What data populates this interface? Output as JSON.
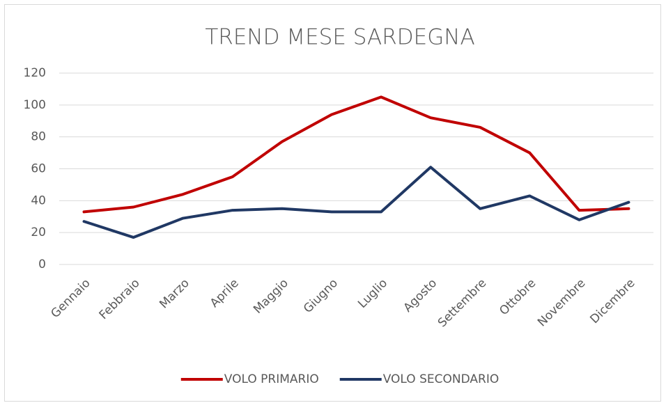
{
  "chart_data": {
    "type": "line",
    "title": "TREND MESE SARDEGNA",
    "categories": [
      "Gennaio",
      "Febbraio",
      "Marzo",
      "Aprile",
      "Maggio",
      "Giugno",
      "Luglio",
      "Agosto",
      "Settembre",
      "Ottobre",
      "Novembre",
      "Dicembre"
    ],
    "series": [
      {
        "name": "VOLO PRIMARIO",
        "color": "#c00000",
        "values": [
          33,
          36,
          44,
          55,
          77,
          94,
          105,
          92,
          86,
          70,
          34,
          35
        ]
      },
      {
        "name": "VOLO SECONDARIO",
        "color": "#203864",
        "values": [
          27,
          17,
          29,
          34,
          35,
          33,
          33,
          61,
          35,
          43,
          28,
          39
        ]
      }
    ],
    "ylim": [
      0,
      120
    ],
    "yticks": [
      0,
      20,
      40,
      60,
      80,
      100,
      120
    ],
    "grid": true,
    "legend": "bottom"
  }
}
